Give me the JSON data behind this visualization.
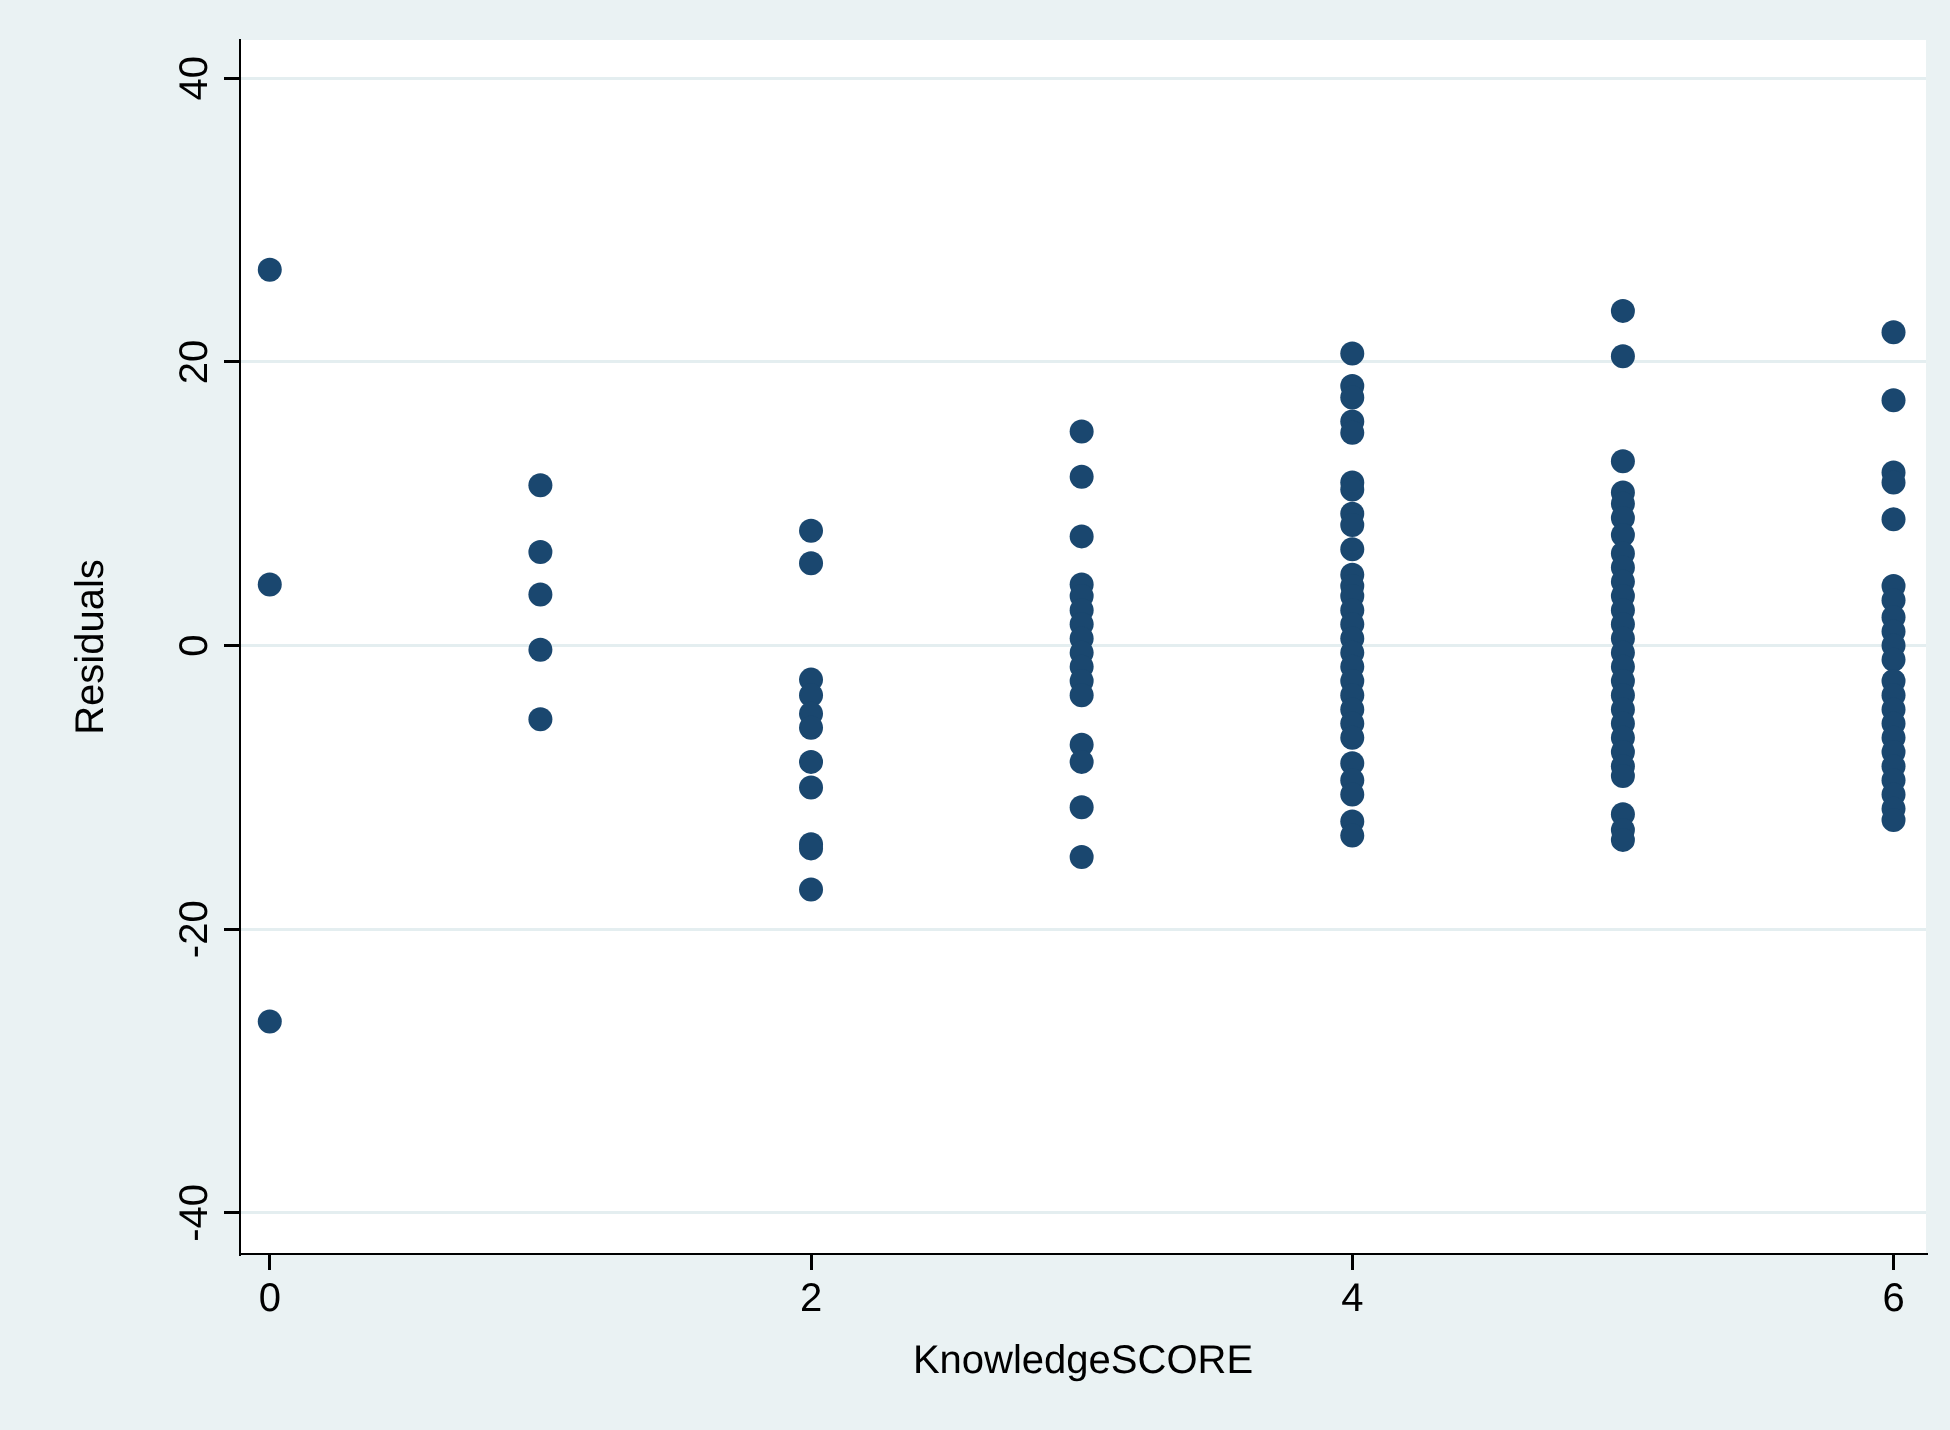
{
  "chart_data": {
    "type": "scatter",
    "xlabel": "KnowledgeSCORE",
    "ylabel": "Residuals",
    "xlim": [
      -0.11,
      6.12
    ],
    "xticks": [
      0,
      2,
      4,
      6
    ],
    "ylim": [
      -42.9,
      42.7
    ],
    "yticks": [
      -40,
      -20,
      0,
      20,
      40
    ],
    "grid": "y",
    "marker": "circle",
    "legend": false,
    "series": [
      {
        "color": "#1a476f",
        "x": [
          0,
          0,
          0,
          1,
          1,
          1,
          1,
          1,
          2,
          2,
          2,
          2,
          2,
          2,
          2,
          2,
          2,
          2,
          2,
          3,
          3,
          3,
          3,
          3,
          3,
          3,
          3,
          3,
          3,
          3,
          3,
          3,
          3,
          3,
          3,
          4,
          4,
          4,
          4,
          4,
          4,
          4,
          4,
          4,
          4,
          4,
          4,
          4,
          4,
          4,
          4,
          4,
          4,
          4,
          4,
          4,
          4,
          4,
          4,
          4,
          4,
          4,
          4,
          5,
          5,
          5,
          5,
          5,
          5,
          5,
          5,
          5,
          5,
          5,
          5,
          5,
          5,
          5,
          5,
          5,
          5,
          5,
          5,
          5,
          5,
          5,
          5,
          5,
          5,
          5,
          6,
          6,
          6,
          6,
          6,
          6,
          6,
          6,
          6,
          6,
          6,
          6,
          6,
          6,
          6,
          6,
          6,
          6,
          6,
          6,
          6,
          6
        ],
        "values": [
          26.5,
          4.3,
          -26.5,
          11.3,
          6.6,
          3.6,
          -0.3,
          -5.2,
          8.1,
          5.8,
          -2.4,
          -3.5,
          -4.8,
          -5.8,
          -8.2,
          -10,
          -14,
          -14.3,
          -17.2,
          15.1,
          11.9,
          7.7,
          4.3,
          3.5,
          2.5,
          1.5,
          0.5,
          -0.5,
          -1.5,
          -2.5,
          -3.5,
          -7,
          -8.2,
          -11.4,
          -14.9,
          20.6,
          18.3,
          17.5,
          15.8,
          15,
          11.5,
          11,
          9.3,
          8.5,
          6.8,
          5,
          4.2,
          3.5,
          2.5,
          1.5,
          0.5,
          -0.5,
          -1.5,
          -2.5,
          -3.5,
          -4.5,
          -5.5,
          -6.5,
          -8.3,
          -9.5,
          -10.5,
          -12.4,
          -13.4,
          23.6,
          20.4,
          13,
          10.8,
          10,
          9,
          7.8,
          6.5,
          5.5,
          4.5,
          3.5,
          2.5,
          1.5,
          0.5,
          -0.5,
          -1.5,
          -2.5,
          -3.5,
          -4.5,
          -5.5,
          -6.5,
          -7.5,
          -8.5,
          -9.2,
          -11.9,
          -13,
          -13.7,
          22.1,
          17.3,
          12.2,
          11.5,
          8.9,
          4.2,
          3.2,
          2,
          1,
          0,
          -1,
          -2.5,
          -3.5,
          -4.5,
          -5.5,
          -6.5,
          -7.5,
          -8.5,
          -9.5,
          -10.5,
          -11.5,
          -12.3
        ]
      }
    ]
  }
}
